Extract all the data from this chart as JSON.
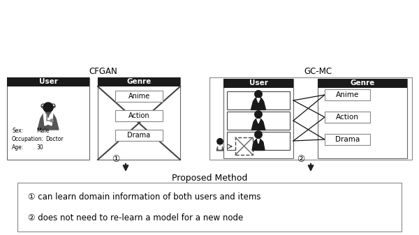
{
  "title_cfgan": "CFGAN",
  "title_gcmc": "GC-MC",
  "label_user": "User",
  "label_genre": "Genre",
  "genre_items": [
    "Anime",
    "Action",
    "Drama"
  ],
  "user_attrs": "Sex:         Male\nOccupation: Doctor\nAge:         30",
  "arrow1_label": "①",
  "arrow2_label": "②",
  "proposed_title": "Proposed Method",
  "benefit1": "① can learn domain information of both users and items",
  "benefit2": "② does not need to re-learn a model for a new node",
  "bg_color": "#ffffff",
  "header_bg": "#1a1a1a",
  "header_text": "#ffffff",
  "line_color": "#333333"
}
